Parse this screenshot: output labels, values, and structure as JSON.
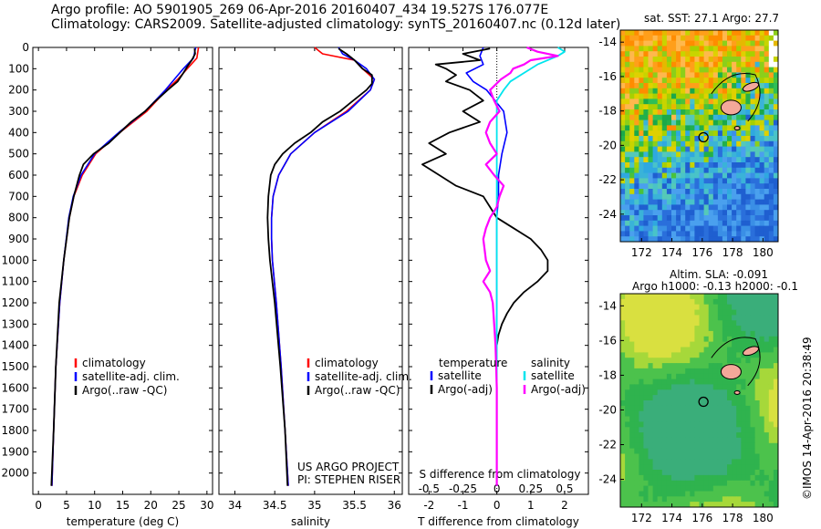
{
  "header": {
    "line1": "Argo profile: AO 5901905_269 06-Apr-2016 20160407_434 19.527S 176.077E",
    "line2": "Climatology: CARS2009. Satellite-adjusted climatology: synTS_20160407.nc (0.12d later)"
  },
  "right": {
    "sst_title": "sat. SST: 27.1 Argo: 27.7",
    "sla_title1": "Altim. SLA: -0.091",
    "sla_title2": "Argo h1000: -0.13 h2000: -0.1",
    "credit": "©IMOS 14-Apr-2016 20:38:49"
  },
  "panel3_notes": {
    "s_diff_label": "S difference from climatology",
    "project1": "US ARGO PROJECT",
    "project2": "PI: STEPHEN RISER"
  },
  "colors": {
    "climatology": "#ff0000",
    "satellite": "#0000ff",
    "argo": "#000000",
    "sat_sal": "#00e5ee",
    "argo_sal": "#ff00ff"
  },
  "chart_data": [
    {
      "type": "line",
      "xlabel": "temperature (deg C)",
      "ylabel": "",
      "xlim": [
        -1,
        31
      ],
      "ylim": [
        2100,
        0
      ],
      "x_ticks": [
        0,
        5,
        10,
        15,
        20,
        25,
        30
      ],
      "y_ticks": [
        0,
        100,
        200,
        300,
        400,
        500,
        600,
        700,
        800,
        900,
        1000,
        1100,
        1200,
        1300,
        1400,
        1500,
        1600,
        1700,
        1800,
        1900,
        2000
      ],
      "legend": [
        "climatology",
        "satellite-adj. clim.",
        "Argo(..raw -QC)"
      ],
      "legend_position": "lower-center",
      "series": [
        {
          "name": "climatology",
          "depth": [
            0,
            50,
            100,
            150,
            200,
            300,
            400,
            500,
            600,
            700,
            800,
            1000,
            1200,
            1500,
            1800,
            2060
          ],
          "values": [
            28.5,
            28.2,
            26.5,
            24.8,
            22.8,
            19.3,
            14.5,
            10.2,
            7.8,
            6.3,
            5.5,
            4.5,
            3.8,
            3.1,
            2.7,
            2.4
          ]
        },
        {
          "name": "satellite-adj. clim.",
          "depth": [
            0,
            50,
            100,
            150,
            200,
            300,
            400,
            500,
            600,
            700,
            800,
            1000,
            1200,
            1500,
            1800,
            2060
          ],
          "values": [
            28.0,
            27.6,
            25.8,
            24.2,
            22.6,
            19.0,
            14.3,
            10.0,
            7.6,
            6.2,
            5.4,
            4.5,
            3.8,
            3.1,
            2.7,
            2.4
          ]
        },
        {
          "name": "Argo(..raw -QC)",
          "depth": [
            5,
            30,
            60,
            90,
            120,
            160,
            200,
            260,
            300,
            350,
            400,
            450,
            500,
            550,
            600,
            700,
            800,
            1000,
            1200,
            1500,
            1800,
            2060
          ],
          "values": [
            27.8,
            27.9,
            27.3,
            26.5,
            25.8,
            24.8,
            23.0,
            20.5,
            19.0,
            16.5,
            14.5,
            12.5,
            9.8,
            8.0,
            7.3,
            6.3,
            5.5,
            4.5,
            3.7,
            3.1,
            2.7,
            2.3
          ]
        }
      ]
    },
    {
      "type": "line",
      "xlabel": "salinity",
      "ylabel": "",
      "xlim": [
        33.8,
        36.1
      ],
      "ylim": [
        2100,
        0
      ],
      "x_ticks": [
        34,
        34.5,
        35,
        35.5,
        36
      ],
      "x_tick_labels": [
        "34",
        "34.5",
        "35",
        "35.5",
        "36"
      ],
      "legend": [
        "climatology",
        "satellite-adj. clim.",
        "Argo(..raw -QC)"
      ],
      "legend_position": "lower-center",
      "series": [
        {
          "name": "climatology",
          "depth": [
            0,
            30,
            60,
            100,
            150,
            200,
            300,
            400,
            500,
            600,
            700,
            800,
            900,
            1000,
            1200,
            1500,
            1800,
            2060
          ],
          "values": [
            35.0,
            35.1,
            35.5,
            35.6,
            35.75,
            35.7,
            35.4,
            35.0,
            34.7,
            34.55,
            34.48,
            34.46,
            34.46,
            34.47,
            34.52,
            34.58,
            34.63,
            34.67
          ]
        },
        {
          "name": "satellite-adj. clim.",
          "depth": [
            0,
            30,
            60,
            100,
            150,
            200,
            300,
            400,
            500,
            600,
            700,
            800,
            900,
            1000,
            1200,
            1500,
            1800,
            2060
          ],
          "values": [
            35.3,
            35.35,
            35.5,
            35.65,
            35.75,
            35.7,
            35.42,
            35.0,
            34.7,
            34.55,
            34.48,
            34.46,
            34.46,
            34.47,
            34.52,
            34.58,
            34.63,
            34.67
          ]
        },
        {
          "name": "Argo(..raw -QC)",
          "depth": [
            5,
            30,
            60,
            100,
            130,
            170,
            200,
            260,
            300,
            350,
            400,
            450,
            500,
            550,
            600,
            700,
            800,
            900,
            1000,
            1200,
            1500,
            1800,
            2060
          ],
          "values": [
            35.3,
            35.4,
            35.5,
            35.6,
            35.72,
            35.72,
            35.65,
            35.45,
            35.32,
            35.1,
            34.95,
            34.75,
            34.6,
            34.5,
            34.45,
            34.42,
            34.41,
            34.42,
            34.44,
            34.5,
            34.57,
            34.63,
            34.66
          ]
        }
      ]
    },
    {
      "type": "line",
      "xlabel": "T difference from climatology",
      "xlabel_top": "S difference from climatology",
      "ylabel": "",
      "xlim": [
        -2.6,
        2.7
      ],
      "ylim": [
        2100,
        0
      ],
      "x_ticks": [
        -2,
        -1,
        0,
        1,
        2
      ],
      "s_ticks": [
        -0.5,
        -0.25,
        0,
        0.25,
        0.5
      ],
      "s_tick_labels": [
        "-0.5",
        "-0.25",
        "0",
        "0.25",
        "0.5"
      ],
      "legend": [
        "temperature",
        "satellite",
        "Argo(-adj)",
        "salinity",
        "satellite",
        "Argo(-adj)"
      ],
      "legend_position": "lower-center",
      "series": [
        {
          "name": "satellite",
          "quantity": "temperature",
          "depth": [
            0,
            40,
            80,
            120,
            160,
            200,
            300,
            400,
            500,
            600,
            700,
            800,
            1000,
            1500,
            2060
          ],
          "values": [
            -0.4,
            -0.5,
            -0.4,
            -0.9,
            -0.7,
            -0.3,
            0.2,
            0.3,
            0.15,
            0.05,
            0.05,
            0.0,
            0.0,
            0.0,
            0.0
          ]
        },
        {
          "name": "Argo(-adj)",
          "quantity": "temperature",
          "depth": [
            5,
            30,
            60,
            80,
            100,
            130,
            160,
            200,
            250,
            300,
            350,
            400,
            450,
            500,
            550,
            600,
            650,
            700,
            750,
            800,
            850,
            900,
            950,
            1000,
            1050,
            1100,
            1150,
            1200,
            1250,
            1300,
            1350,
            1400,
            1500,
            1700,
            2060
          ],
          "values": [
            -0.2,
            -1.0,
            -0.5,
            -1.8,
            -1.5,
            -1.2,
            -1.5,
            -0.8,
            -0.4,
            -1.0,
            -0.5,
            -1.4,
            -2.0,
            -1.5,
            -2.2,
            -1.7,
            -1.2,
            -0.4,
            -0.2,
            0.0,
            0.5,
            1.0,
            1.3,
            1.5,
            1.5,
            1.2,
            0.8,
            0.5,
            0.3,
            0.15,
            0.05,
            0.0,
            0.0,
            0.0,
            0.0
          ]
        },
        {
          "name": "satellite",
          "quantity": "salinity",
          "depth": [
            0,
            20,
            40,
            80,
            120,
            160,
            200,
            250,
            300,
            400,
            600,
            800,
            1000,
            1500,
            2060
          ],
          "values": [
            0.45,
            0.5,
            0.45,
            0.3,
            0.2,
            0.1,
            0.05,
            0.0,
            0.0,
            0.0,
            0.0,
            0.0,
            0.0,
            0.0,
            0.0
          ]
        },
        {
          "name": "Argo(-adj)",
          "quantity": "salinity",
          "depth": [
            0,
            20,
            40,
            60,
            80,
            100,
            120,
            150,
            200,
            250,
            300,
            350,
            400,
            450,
            500,
            550,
            600,
            650,
            700,
            750,
            800,
            850,
            900,
            1000,
            1050,
            1100,
            1150,
            1200,
            1300,
            1400,
            1600,
            2060
          ],
          "values": [
            0.22,
            0.3,
            0.45,
            0.25,
            0.2,
            0.12,
            0.1,
            0.03,
            -0.05,
            -0.02,
            0.02,
            -0.05,
            -0.08,
            -0.05,
            0.0,
            -0.08,
            -0.02,
            0.05,
            0.02,
            0.0,
            -0.05,
            -0.08,
            -0.1,
            -0.08,
            -0.05,
            -0.1,
            -0.05,
            -0.03,
            -0.02,
            -0.01,
            0.0,
            0.0
          ]
        }
      ]
    },
    {
      "type": "heatmap",
      "title": "sat. SST: 27.1 Argo: 27.7",
      "xlim": [
        170.6,
        181.0
      ],
      "ylim": [
        -25.6,
        -13.3
      ],
      "x_ticks": [
        172,
        174,
        176,
        178,
        180
      ],
      "y_ticks": [
        -14,
        -16,
        -18,
        -20,
        -22,
        -24
      ],
      "argo_marker": [
        176.08,
        -19.53
      ]
    },
    {
      "type": "heatmap",
      "title": "Altim. SLA: -0.091",
      "subtitle": "Argo h1000: -0.13 h2000: -0.1",
      "xlim": [
        170.6,
        181.0
      ],
      "ylim": [
        -25.6,
        -13.3
      ],
      "x_ticks": [
        172,
        174,
        176,
        178,
        180
      ],
      "y_ticks": [
        -14,
        -16,
        -18,
        -20,
        -22,
        -24
      ],
      "argo_marker": [
        176.08,
        -19.53
      ]
    }
  ]
}
